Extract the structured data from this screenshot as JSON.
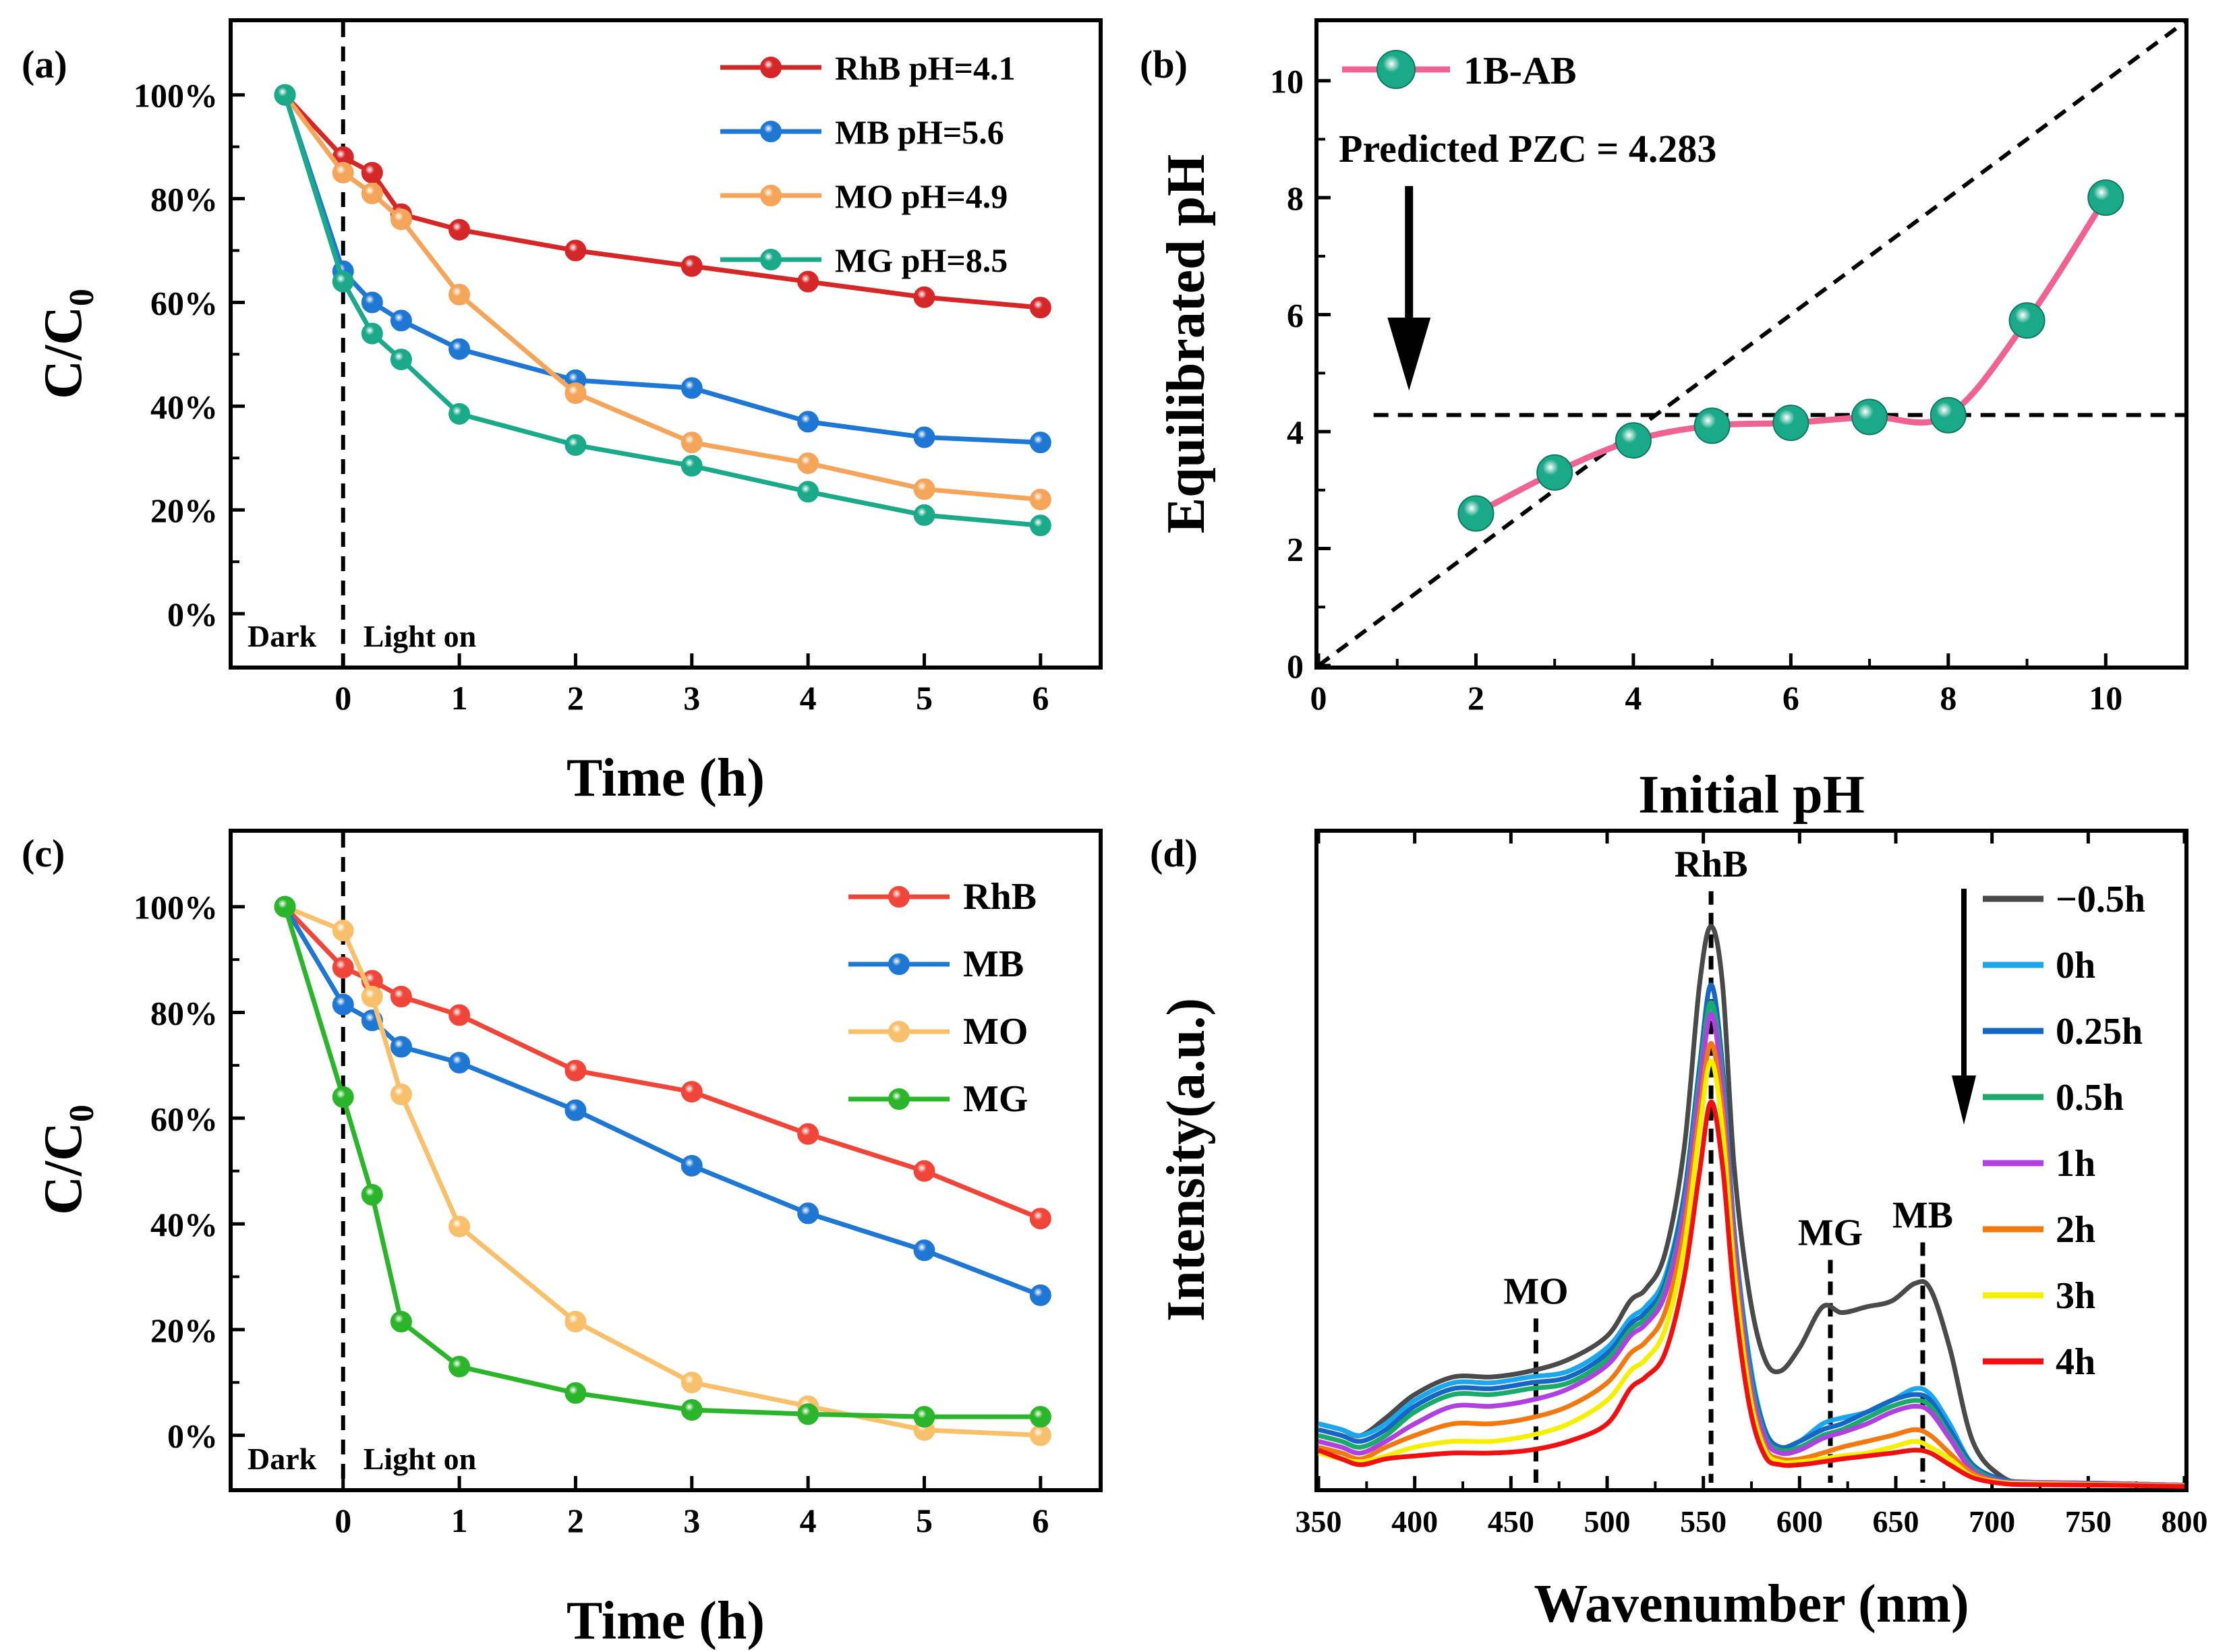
{
  "figure": {
    "description_free": true
  },
  "chart_data": [
    {
      "panel": "(a)",
      "type": "line",
      "xlabel": "Time (h)",
      "ylabel": "C/C0",
      "ylabel_main": "C/C",
      "ylabel_sub": "0",
      "xlim": [
        -0.95,
        6.5
      ],
      "ylim": [
        -0.1,
        1.14
      ],
      "xticks": [
        0,
        1,
        2,
        3,
        4,
        5,
        6
      ],
      "xtick_labels": [
        "0",
        "1",
        "2",
        "3",
        "4",
        "5",
        "6"
      ],
      "yticks": [
        0,
        0.2,
        0.4,
        0.6,
        0.8,
        1.0
      ],
      "ytick_labels": [
        "0%",
        "20%",
        "40%",
        "60%",
        "80%",
        "100%"
      ],
      "vline_x": 0,
      "annotations": {
        "dark": "Dark",
        "light": "Light on"
      },
      "legend_position": "top-right",
      "x": [
        -0.5,
        0,
        0.25,
        0.5,
        1,
        2,
        3,
        4,
        5,
        6
      ],
      "series": [
        {
          "name": "RhB pH=4.1",
          "color": "#d62728",
          "values": [
            1.0,
            0.88,
            0.85,
            0.77,
            0.74,
            0.7,
            0.67,
            0.64,
            0.61,
            0.59
          ]
        },
        {
          "name": "MB  pH=5.6",
          "color": "#1f77d4",
          "values": [
            1.0,
            0.66,
            0.6,
            0.565,
            0.51,
            0.45,
            0.435,
            0.37,
            0.34,
            0.33
          ]
        },
        {
          "name": "MO  pH=4.9",
          "color": "#f5a55a",
          "values": [
            1.0,
            0.85,
            0.81,
            0.76,
            0.615,
            0.425,
            0.33,
            0.29,
            0.24,
            0.22
          ]
        },
        {
          "name": "MG  pH=8.5",
          "color": "#1aaa8a",
          "values": [
            1.0,
            0.64,
            0.54,
            0.49,
            0.385,
            0.325,
            0.285,
            0.235,
            0.19,
            0.17
          ]
        }
      ]
    },
    {
      "panel": "(b)",
      "type": "line",
      "xlabel": "Initial pH",
      "ylabel": "Equilibrated pH",
      "xlim": [
        0,
        11
      ],
      "ylim": [
        0,
        11
      ],
      "xticks": [
        0,
        2,
        4,
        6,
        8,
        10
      ],
      "xtick_labels": [
        "0",
        "2",
        "4",
        "6",
        "8",
        "10"
      ],
      "yticks": [
        0,
        2,
        4,
        6,
        8,
        10
      ],
      "ytick_labels": [
        "0",
        "2",
        "4",
        "6",
        "8",
        "10"
      ],
      "legend_position": "top-left",
      "annotation": "Predicted PZC = 4.283",
      "pzc": 4.283,
      "series": [
        {
          "name": "1B-AB",
          "color": "#f06292",
          "marker_color": "#1aaa8a",
          "x": [
            2,
            3,
            4,
            5,
            6,
            7,
            8,
            9,
            10
          ],
          "values": [
            2.6,
            3.3,
            3.85,
            4.1,
            4.15,
            4.25,
            4.28,
            5.9,
            8.0
          ]
        }
      ],
      "reference_lines": [
        "y = x",
        "y = 4.283"
      ]
    },
    {
      "panel": "(c)",
      "type": "line",
      "xlabel": "Time (h)",
      "ylabel": "C/C0",
      "ylabel_main": "C/C",
      "ylabel_sub": "0",
      "xlim": [
        -0.95,
        6.5
      ],
      "ylim": [
        -0.1,
        1.14
      ],
      "xticks": [
        0,
        1,
        2,
        3,
        4,
        5,
        6
      ],
      "xtick_labels": [
        "0",
        "1",
        "2",
        "3",
        "4",
        "5",
        "6"
      ],
      "yticks": [
        0,
        0.2,
        0.4,
        0.6,
        0.8,
        1.0
      ],
      "ytick_labels": [
        "0%",
        "20%",
        "40%",
        "60%",
        "80%",
        "100%"
      ],
      "vline_x": 0,
      "annotations": {
        "dark": "Dark",
        "light": "Light on"
      },
      "legend_position": "top-right",
      "x": [
        -0.5,
        0,
        0.25,
        0.5,
        1,
        2,
        3,
        4,
        5,
        6
      ],
      "series": [
        {
          "name": "RhB",
          "color": "#f0463a",
          "values": [
            1.0,
            0.885,
            0.86,
            0.83,
            0.795,
            0.69,
            0.65,
            0.57,
            0.5,
            0.41
          ]
        },
        {
          "name": "MB",
          "color": "#1f77d4",
          "values": [
            1.0,
            0.815,
            0.785,
            0.735,
            0.705,
            0.615,
            0.51,
            0.42,
            0.35,
            0.265
          ]
        },
        {
          "name": "MO",
          "color": "#f8c06a",
          "values": [
            1.0,
            0.955,
            0.83,
            0.645,
            0.395,
            0.215,
            0.1,
            0.055,
            0.01,
            0.0
          ]
        },
        {
          "name": "MG",
          "color": "#2ab52a",
          "values": [
            1.0,
            0.64,
            0.455,
            0.215,
            0.13,
            0.08,
            0.048,
            0.04,
            0.035,
            0.035
          ]
        }
      ]
    },
    {
      "panel": "(d)",
      "type": "line",
      "xlabel": "Wavenumber (nm)",
      "ylabel": "Intensity(a.u.)",
      "xlim": [
        350,
        800
      ],
      "ylim": [
        0,
        1.12
      ],
      "xticks": [
        350,
        400,
        450,
        500,
        550,
        600,
        650,
        700,
        750,
        800
      ],
      "xtick_labels": [
        "350",
        "400",
        "450",
        "500",
        "550",
        "600",
        "650",
        "700",
        "750",
        "800"
      ],
      "yticks": [],
      "legend_position": "right",
      "peak_markers": [
        {
          "label": "MO",
          "x": 463,
          "ytop": 0.29
        },
        {
          "label": "RhB",
          "x": 554,
          "ytop": 1.02
        },
        {
          "label": "MG",
          "x": 616,
          "ytop": 0.39
        },
        {
          "label": "MB",
          "x": 664,
          "ytop": 0.42
        }
      ],
      "x": [
        350,
        362,
        372,
        385,
        400,
        420,
        440,
        460,
        480,
        500,
        512,
        520,
        530,
        540,
        548,
        554,
        560,
        566,
        574,
        582,
        590,
        600,
        612,
        622,
        635,
        648,
        660,
        668,
        678,
        690,
        705,
        720,
        760,
        800
      ],
      "series": [
        {
          "name": "−0.5h",
          "color": "#4a4a4a",
          "values": [
            0.11,
            0.1,
            0.09,
            0.12,
            0.16,
            0.19,
            0.19,
            0.2,
            0.22,
            0.26,
            0.32,
            0.34,
            0.4,
            0.58,
            0.86,
            0.96,
            0.86,
            0.55,
            0.33,
            0.22,
            0.2,
            0.24,
            0.31,
            0.3,
            0.31,
            0.32,
            0.35,
            0.34,
            0.24,
            0.08,
            0.02,
            0.01,
            0.008,
            0.005
          ]
        },
        {
          "name": "0h",
          "color": "#1ca7ec",
          "values": [
            0.11,
            0.1,
            0.09,
            0.11,
            0.15,
            0.18,
            0.18,
            0.19,
            0.2,
            0.24,
            0.29,
            0.31,
            0.36,
            0.5,
            0.7,
            0.82,
            0.7,
            0.44,
            0.22,
            0.1,
            0.07,
            0.08,
            0.11,
            0.12,
            0.13,
            0.15,
            0.17,
            0.16,
            0.11,
            0.04,
            0.015,
            0.01,
            0.008,
            0.005
          ]
        },
        {
          "name": "0.25h",
          "color": "#1666c5",
          "values": [
            0.1,
            0.09,
            0.08,
            0.1,
            0.14,
            0.17,
            0.17,
            0.18,
            0.19,
            0.23,
            0.28,
            0.3,
            0.35,
            0.5,
            0.72,
            0.86,
            0.72,
            0.44,
            0.21,
            0.1,
            0.07,
            0.08,
            0.1,
            0.11,
            0.13,
            0.15,
            0.16,
            0.15,
            0.1,
            0.04,
            0.015,
            0.01,
            0.008,
            0.005
          ]
        },
        {
          "name": "0.5h",
          "color": "#1aaa6a",
          "values": [
            0.09,
            0.08,
            0.07,
            0.09,
            0.13,
            0.16,
            0.16,
            0.17,
            0.18,
            0.22,
            0.27,
            0.29,
            0.34,
            0.48,
            0.7,
            0.83,
            0.7,
            0.43,
            0.2,
            0.09,
            0.065,
            0.07,
            0.09,
            0.1,
            0.12,
            0.14,
            0.15,
            0.14,
            0.09,
            0.035,
            0.012,
            0.01,
            0.008,
            0.005
          ]
        },
        {
          "name": "1h",
          "color": "#b040e0",
          "values": [
            0.08,
            0.07,
            0.06,
            0.08,
            0.11,
            0.14,
            0.14,
            0.15,
            0.17,
            0.21,
            0.26,
            0.28,
            0.33,
            0.47,
            0.68,
            0.81,
            0.68,
            0.42,
            0.19,
            0.085,
            0.06,
            0.065,
            0.085,
            0.095,
            0.11,
            0.13,
            0.14,
            0.13,
            0.085,
            0.03,
            0.012,
            0.01,
            0.008,
            0.005
          ]
        },
        {
          "name": "2h",
          "color": "#f07a10",
          "values": [
            0.07,
            0.06,
            0.05,
            0.07,
            0.09,
            0.11,
            0.11,
            0.12,
            0.14,
            0.18,
            0.23,
            0.25,
            0.3,
            0.44,
            0.64,
            0.76,
            0.64,
            0.39,
            0.17,
            0.07,
            0.05,
            0.05,
            0.06,
            0.07,
            0.08,
            0.09,
            0.1,
            0.09,
            0.06,
            0.025,
            0.01,
            0.008,
            0.006,
            0.004
          ]
        },
        {
          "name": "3h",
          "color": "#f5f000",
          "values": [
            0.06,
            0.05,
            0.045,
            0.055,
            0.07,
            0.08,
            0.08,
            0.09,
            0.11,
            0.15,
            0.2,
            0.22,
            0.27,
            0.41,
            0.61,
            0.73,
            0.61,
            0.37,
            0.16,
            0.065,
            0.045,
            0.045,
            0.05,
            0.055,
            0.06,
            0.07,
            0.08,
            0.07,
            0.05,
            0.02,
            0.01,
            0.008,
            0.006,
            0.004
          ]
        },
        {
          "name": "4h",
          "color": "#f01010",
          "values": [
            0.065,
            0.05,
            0.04,
            0.05,
            0.055,
            0.06,
            0.06,
            0.065,
            0.08,
            0.11,
            0.17,
            0.19,
            0.23,
            0.36,
            0.54,
            0.66,
            0.55,
            0.33,
            0.14,
            0.055,
            0.04,
            0.04,
            0.045,
            0.05,
            0.055,
            0.06,
            0.065,
            0.06,
            0.04,
            0.018,
            0.008,
            0.006,
            0.005,
            0.003
          ]
        }
      ]
    }
  ]
}
